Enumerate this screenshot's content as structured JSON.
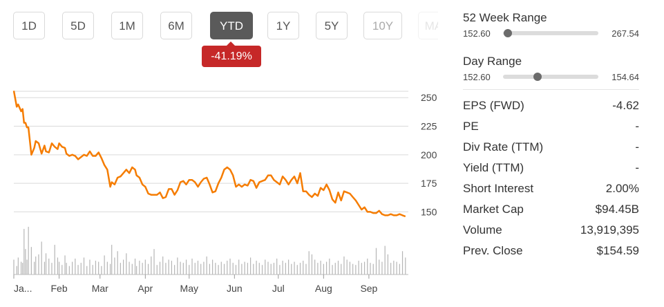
{
  "periods": [
    {
      "label": "1D",
      "state": "normal"
    },
    {
      "label": "5D",
      "state": "normal"
    },
    {
      "label": "1M",
      "state": "normal"
    },
    {
      "label": "6M",
      "state": "normal"
    },
    {
      "label": "YTD",
      "state": "active"
    },
    {
      "label": "1Y",
      "state": "normal"
    },
    {
      "label": "5Y",
      "state": "normal"
    },
    {
      "label": "10Y",
      "state": "disabled"
    },
    {
      "label": "MAX",
      "state": "faded"
    }
  ],
  "change_badge": "-41.19%",
  "colors": {
    "line": "#f57c00",
    "grid": "#d9d9d9",
    "volume": "#b5b5b5",
    "badge": "#c62828",
    "active_button": "#5a5a5a"
  },
  "chart_data": {
    "type": "line",
    "title": "",
    "xlabel": "",
    "ylabel": "",
    "y_ticks": [
      150,
      175,
      200,
      225,
      250
    ],
    "ylim": [
      143,
      258
    ],
    "x_tick_labels": [
      "Ja...",
      "Feb",
      "Mar",
      "Apr",
      "May",
      "Jun",
      "Jul",
      "Aug",
      "Sep"
    ],
    "x_tick_days": [
      0,
      31,
      59,
      90,
      120,
      151,
      181,
      212,
      243
    ],
    "xlim": [
      0,
      270
    ],
    "grid": true,
    "series": [
      {
        "x": [
          0,
          2,
          3,
          5,
          6,
          7,
          8,
          9,
          10,
          12,
          14,
          15,
          17,
          19,
          21,
          22,
          24,
          26,
          28,
          30,
          31,
          33,
          35,
          36,
          38,
          40,
          42,
          44,
          46,
          48,
          50,
          52,
          54,
          56,
          58,
          60,
          62,
          64,
          66,
          67,
          69,
          71,
          73,
          75,
          77,
          79,
          81,
          83,
          84,
          86,
          88,
          90,
          92,
          94,
          96,
          98,
          100,
          102,
          104,
          106,
          108,
          110,
          112,
          114,
          116,
          118,
          120,
          122,
          124,
          126,
          128,
          130,
          132,
          134,
          136,
          138,
          140,
          142,
          144,
          146,
          148,
          150,
          152,
          154,
          156,
          158,
          160,
          162,
          164,
          166,
          168,
          170,
          172,
          174,
          176,
          178,
          180,
          182,
          184,
          186,
          188,
          190,
          192,
          194,
          196,
          198,
          200,
          202,
          204,
          206,
          208,
          210,
          212,
          214,
          216,
          218,
          220,
          222,
          224,
          226,
          228,
          230,
          232,
          234,
          236,
          238,
          240,
          242,
          244,
          246,
          248,
          250,
          252,
          254,
          256,
          258,
          260,
          262,
          264,
          266,
          268
        ],
        "values": [
          256,
          242,
          244,
          238,
          240,
          228,
          228,
          224,
          224,
          200,
          206,
          212,
          210,
          201,
          208,
          203,
          202,
          210,
          207,
          205,
          210,
          207,
          206,
          201,
          199,
          200,
          199,
          196,
          198,
          200,
          199,
          203,
          199,
          199,
          202,
          197,
          191,
          187,
          172,
          176,
          174,
          180,
          181,
          184,
          187,
          184,
          189,
          187,
          182,
          180,
          174,
          172,
          166,
          165,
          165,
          165,
          167,
          162,
          163,
          170,
          170,
          165,
          169,
          176,
          177,
          174,
          178,
          178,
          176,
          172,
          176,
          179,
          180,
          174,
          167,
          168,
          175,
          180,
          187,
          189,
          187,
          182,
          172,
          174,
          172,
          174,
          173,
          178,
          177,
          171,
          176,
          177,
          178,
          182,
          182,
          178,
          176,
          174,
          181,
          178,
          174,
          178,
          181,
          175,
          184,
          168,
          168,
          165,
          163,
          166,
          164,
          171,
          169,
          174,
          169,
          161,
          158,
          167,
          160,
          168,
          167,
          166,
          163,
          160,
          156,
          152,
          154,
          150,
          150,
          149,
          149,
          151,
          148,
          147,
          147,
          148,
          147,
          147,
          148,
          147,
          146
        ],
        "volumes": [
          14,
          8,
          16,
          12,
          11,
          43,
          24,
          14,
          45,
          26,
          12,
          17,
          19,
          31,
          12,
          20,
          15,
          11,
          28,
          16,
          12,
          9,
          18,
          11,
          8,
          12,
          15,
          9,
          11,
          16,
          8,
          14,
          9,
          13,
          12,
          8,
          18,
          12,
          10,
          28,
          16,
          22,
          11,
          14,
          20,
          12,
          10,
          15,
          8,
          13,
          11,
          14,
          10,
          17,
          24,
          9,
          12,
          17,
          11,
          14,
          13,
          9,
          16,
          12,
          11,
          14,
          9,
          15,
          11,
          13,
          10,
          12,
          17,
          10,
          14,
          11,
          9,
          12,
          10,
          13,
          15,
          11,
          9,
          14,
          10,
          12,
          11,
          16,
          10,
          13,
          11,
          9,
          14,
          12,
          10,
          11,
          15,
          9,
          13,
          11,
          14,
          10,
          12,
          9,
          11,
          13,
          10,
          22,
          19,
          14,
          11,
          13,
          10,
          12,
          15,
          9,
          11,
          13,
          10,
          17,
          14,
          12,
          10,
          9,
          13,
          11,
          12,
          15,
          11,
          10,
          25,
          14,
          12,
          27,
          19,
          11,
          13,
          12,
          10,
          22,
          16
        ]
      }
    ]
  },
  "ranges": [
    {
      "title": "52 Week Range",
      "low": "152.60",
      "high": "267.54",
      "position": 0.05
    },
    {
      "title": "Day Range",
      "low": "152.60",
      "high": "154.64",
      "position": 0.36
    }
  ],
  "stats": [
    {
      "label": "EPS (FWD)",
      "value": "-4.62"
    },
    {
      "label": "PE",
      "value": "-"
    },
    {
      "label": "Div Rate (TTM)",
      "value": "-"
    },
    {
      "label": "Yield (TTM)",
      "value": "-"
    },
    {
      "label": "Short Interest",
      "value": "2.00%"
    },
    {
      "label": "Market Cap",
      "value": "$94.45B"
    },
    {
      "label": "Volume",
      "value": "13,919,395"
    },
    {
      "label": "Prev. Close",
      "value": "$154.59"
    }
  ]
}
